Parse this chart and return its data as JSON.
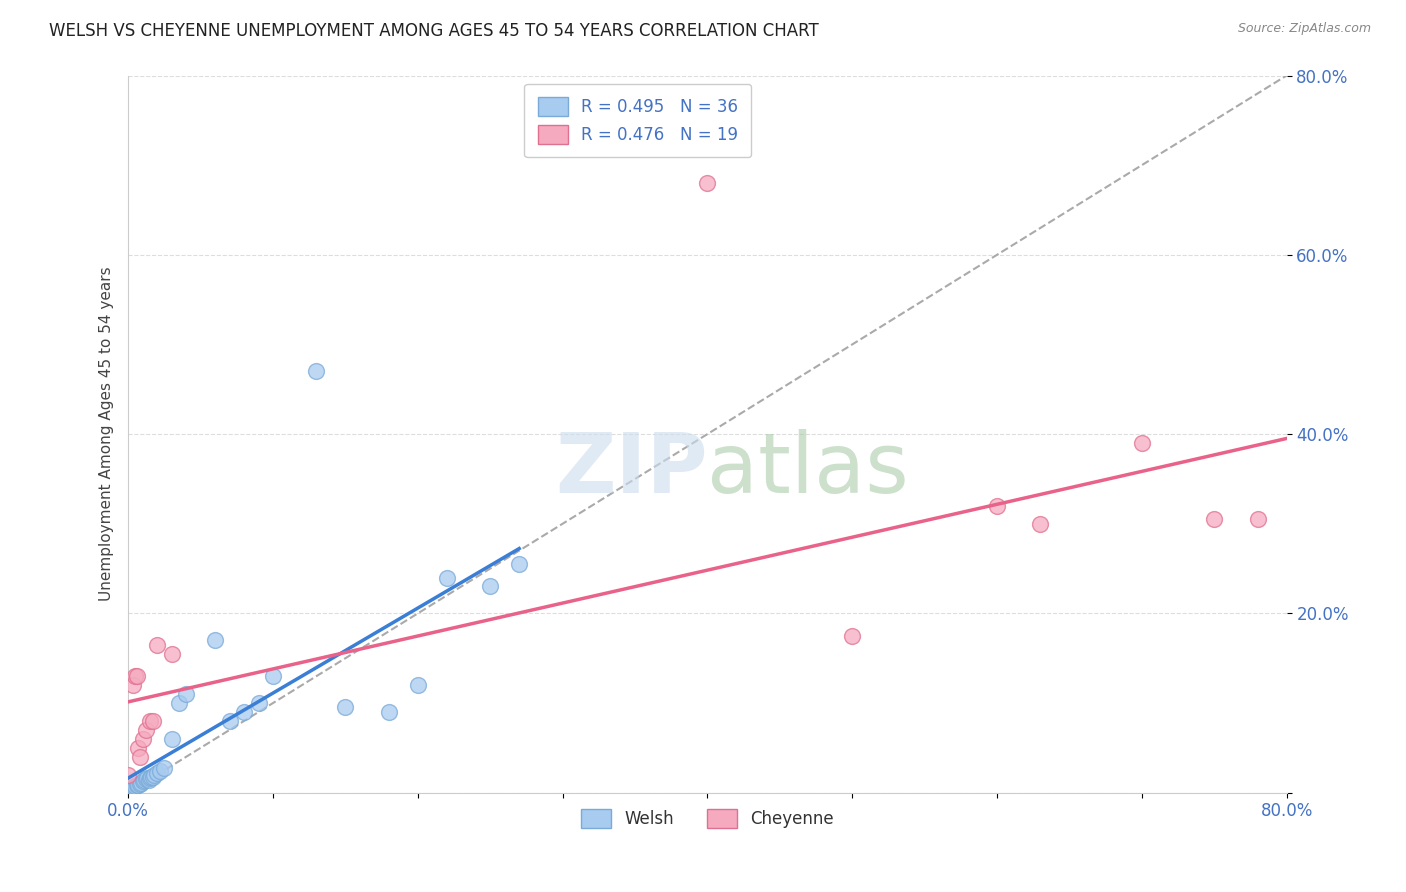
{
  "title": "WELSH VS CHEYENNE UNEMPLOYMENT AMONG AGES 45 TO 54 YEARS CORRELATION CHART",
  "source": "Source: ZipAtlas.com",
  "ylabel": "Unemployment Among Ages 45 to 54 years",
  "xlim": [
    0.0,
    0.8
  ],
  "ylim": [
    0.0,
    0.8
  ],
  "welsh_color": "#A8CBF0",
  "welsh_edge_color": "#7AAAD8",
  "cheyenne_color": "#F5AABF",
  "cheyenne_edge_color": "#E07090",
  "welsh_line_color": "#3A7FD5",
  "cheyenne_line_color": "#E8628A",
  "diag_line_color": "#AAAAAA",
  "welsh_R": 0.495,
  "welsh_N": 36,
  "cheyenne_R": 0.476,
  "cheyenne_N": 19,
  "grid_color": "#DDDDDD",
  "welsh_x": [
    0.0,
    0.002,
    0.003,
    0.004,
    0.005,
    0.006,
    0.007,
    0.008,
    0.009,
    0.01,
    0.011,
    0.012,
    0.013,
    0.014,
    0.015,
    0.016,
    0.017,
    0.018,
    0.02,
    0.022,
    0.025,
    0.03,
    0.035,
    0.04,
    0.06,
    0.07,
    0.08,
    0.09,
    0.1,
    0.13,
    0.15,
    0.18,
    0.2,
    0.22,
    0.25,
    0.27
  ],
  "welsh_y": [
    0.002,
    0.004,
    0.005,
    0.006,
    0.007,
    0.008,
    0.009,
    0.01,
    0.011,
    0.013,
    0.014,
    0.015,
    0.016,
    0.014,
    0.016,
    0.017,
    0.018,
    0.02,
    0.022,
    0.024,
    0.027,
    0.06,
    0.1,
    0.11,
    0.17,
    0.08,
    0.09,
    0.1,
    0.13,
    0.47,
    0.095,
    0.09,
    0.12,
    0.24,
    0.23,
    0.255
  ],
  "cheyenne_x": [
    0.0,
    0.003,
    0.005,
    0.006,
    0.007,
    0.008,
    0.01,
    0.012,
    0.015,
    0.017,
    0.02,
    0.03,
    0.4,
    0.5,
    0.6,
    0.63,
    0.7,
    0.75,
    0.78
  ],
  "cheyenne_y": [
    0.02,
    0.12,
    0.13,
    0.13,
    0.05,
    0.04,
    0.06,
    0.07,
    0.08,
    0.08,
    0.165,
    0.155,
    0.68,
    0.175,
    0.32,
    0.3,
    0.39,
    0.305,
    0.305
  ]
}
